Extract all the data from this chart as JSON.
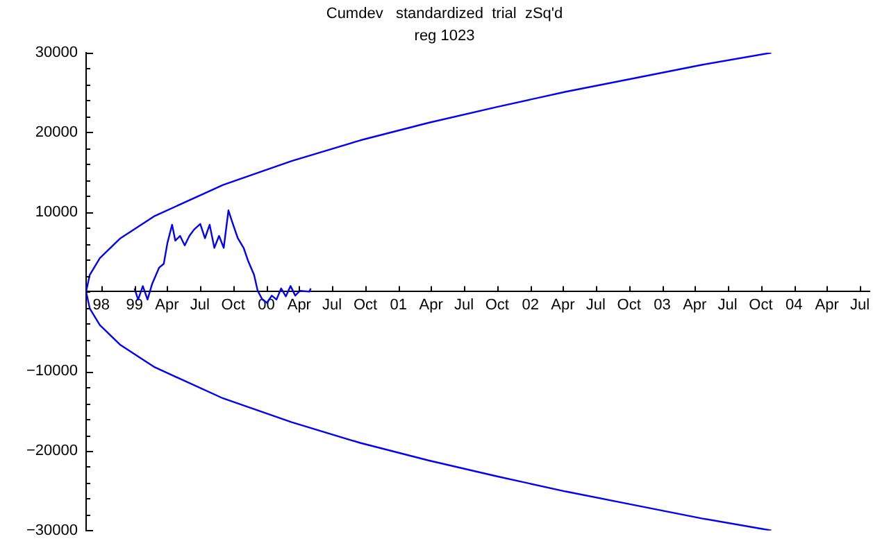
{
  "chart_data": {
    "type": "line",
    "title": "Cumdev   standardized  trial  zSq'd",
    "subtitle": "reg 1023",
    "marker": "none",
    "line_style": "solid",
    "xlim": [
      "1998-08-20",
      "2004-07-28"
    ],
    "ylim": [
      -30000,
      30000
    ],
    "xticks": [
      {
        "value": "1998-10-01",
        "label": "98"
      },
      {
        "value": "1999-01-01",
        "label": "99"
      },
      {
        "value": "1999-04-01",
        "label": "Apr"
      },
      {
        "value": "1999-07-01",
        "label": "Jul"
      },
      {
        "value": "1999-10-01",
        "label": "Oct"
      },
      {
        "value": "2000-01-01",
        "label": "00"
      },
      {
        "value": "2000-04-01",
        "label": "Apr"
      },
      {
        "value": "2000-07-01",
        "label": "Jul"
      },
      {
        "value": "2000-10-01",
        "label": "Oct"
      },
      {
        "value": "2001-01-01",
        "label": "01"
      },
      {
        "value": "2001-04-01",
        "label": "Apr"
      },
      {
        "value": "2001-07-01",
        "label": "Jul"
      },
      {
        "value": "2001-10-01",
        "label": "Oct"
      },
      {
        "value": "2002-01-01",
        "label": "02"
      },
      {
        "value": "2002-04-01",
        "label": "Apr"
      },
      {
        "value": "2002-07-01",
        "label": "Jul"
      },
      {
        "value": "2002-10-01",
        "label": "Oct"
      },
      {
        "value": "2003-01-01",
        "label": "03"
      },
      {
        "value": "2003-04-01",
        "label": "Apr"
      },
      {
        "value": "2003-07-01",
        "label": "Jul"
      },
      {
        "value": "2003-10-01",
        "label": "Oct"
      },
      {
        "value": "2004-01-01",
        "label": "04"
      },
      {
        "value": "2004-04-01",
        "label": "Apr"
      },
      {
        "value": "2004-07-01",
        "label": "Jul"
      }
    ],
    "yticks": [
      -30000,
      {
        "value": -28000,
        "label": null
      },
      {
        "value": -26000,
        "label": null
      },
      {
        "value": -24000,
        "label": null
      },
      {
        "value": -22000,
        "label": null
      },
      -20000,
      {
        "value": -18000,
        "label": null
      },
      {
        "value": -16000,
        "label": null
      },
      {
        "value": -14000,
        "label": null
      },
      {
        "value": -12000,
        "label": null
      },
      -10000,
      {
        "value": -8000,
        "label": null
      },
      {
        "value": -6000,
        "label": null
      },
      {
        "value": -4000,
        "label": null
      },
      {
        "value": -2000,
        "label": null
      },
      {
        "value": 0,
        "label": null
      },
      {
        "value": 2000,
        "label": null
      },
      {
        "value": 4000,
        "label": null
      },
      {
        "value": 6000,
        "label": null
      },
      {
        "value": 8000,
        "label": null
      },
      10000,
      {
        "value": 12000,
        "label": null
      },
      {
        "value": 14000,
        "label": null
      },
      {
        "value": 16000,
        "label": null
      },
      {
        "value": 18000,
        "label": null
      },
      20000,
      {
        "value": 22000,
        "label": null
      },
      {
        "value": 24000,
        "label": null
      },
      {
        "value": 26000,
        "label": null
      },
      {
        "value": 28000,
        "label": null
      },
      30000
    ],
    "series": [
      {
        "color": "#0000ff",
        "x": [
          "2003-10-30",
          "2003-04-23",
          "2002-10-16",
          "2002-04-09",
          "2001-10-01",
          "2001-03-25",
          "2000-09-17",
          "2000-03-11",
          "1999-09-03",
          "1999-02-26",
          "1998-11-23",
          "1998-09-27",
          "1998-08-30",
          "1998-08-20",
          "1998-08-30",
          "1998-09-27",
          "1998-11-23",
          "1999-02-26",
          "1999-09-03",
          "2000-03-11",
          "2000-09-17",
          "2001-03-25",
          "2001-10-01",
          "2002-04-09",
          "2002-10-16",
          "2003-04-23",
          "2003-10-30"
        ],
        "values": [
          30000,
          28500,
          26800,
          25100,
          23200,
          21200,
          19000,
          16400,
          13400,
          9500,
          6700,
          4200,
          2100,
          0,
          -2100,
          -4200,
          -6700,
          -9500,
          -13400,
          -16400,
          -19000,
          -21200,
          -23200,
          -25100,
          -26800,
          -28500,
          -30000
        ]
      },
      {
        "color": "#0000ff",
        "x": [
          "1999-01-01",
          "1999-01-11",
          "1999-01-24",
          "1999-02-06",
          "1999-02-19",
          "1999-03-10",
          "1999-03-23",
          "1999-04-02",
          "1999-04-15",
          "1999-04-24",
          "1999-05-07",
          "1999-05-20",
          "1999-06-02",
          "1999-06-15",
          "1999-07-02",
          "1999-07-15",
          "1999-07-28",
          "1999-08-10",
          "1999-08-23",
          "1999-09-05",
          "1999-09-18",
          "1999-10-01",
          "1999-10-14",
          "1999-10-30",
          "1999-11-12",
          "1999-11-28",
          "1999-12-08",
          "1999-12-21",
          "2000-01-03",
          "2000-01-16",
          "2000-01-29",
          "2000-02-11",
          "2000-02-24",
          "2000-03-08",
          "2000-03-21",
          "2000-04-03",
          "2000-04-29",
          "2000-05-03"
        ],
        "values": [
          400,
          -1000,
          700,
          -1000,
          1000,
          3000,
          3500,
          6100,
          8400,
          6400,
          7000,
          5800,
          7000,
          7800,
          8500,
          6700,
          8400,
          5500,
          7000,
          5500,
          10200,
          8400,
          6700,
          5500,
          3800,
          2100,
          100,
          -1000,
          -1400,
          -500,
          -1000,
          400,
          -600,
          700,
          -500,
          100,
          0,
          400
        ]
      }
    ]
  }
}
